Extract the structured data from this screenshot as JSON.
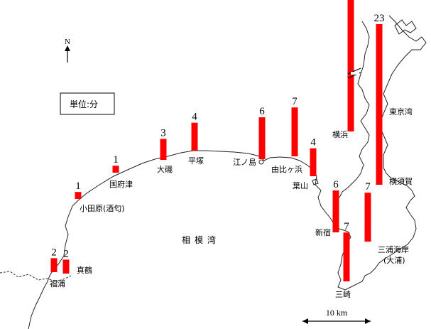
{
  "unit_label": "単位:分",
  "north_label": "N",
  "sea_label": "相模湾",
  "scale_label": "10 km",
  "bar_color": "#ff0000",
  "value_scale_max": 23,
  "locations": [
    {
      "name": "真鶴",
      "value": 2
    },
    {
      "name": "福浦",
      "value": 2
    },
    {
      "name": "小田原(酒匂)",
      "value": 1
    },
    {
      "name": "国府津",
      "value": 1
    },
    {
      "name": "大磯",
      "value": 3
    },
    {
      "name": "平塚",
      "value": 4
    },
    {
      "name": "江ノ島",
      "value": 6
    },
    {
      "name": "由比ヶ浜",
      "value": 7
    },
    {
      "name": "葉山",
      "value": 4
    },
    {
      "name": "新宿",
      "value": 6
    },
    {
      "name": "三崎",
      "value": 7
    },
    {
      "name": "三浦海岸",
      "label_line2": "(大浦)",
      "value": 7
    },
    {
      "name": "横浜",
      "value": 23,
      "broken": true
    },
    {
      "name": "東京湾",
      "value": 23
    },
    {
      "name": "横須賀"
    }
  ]
}
